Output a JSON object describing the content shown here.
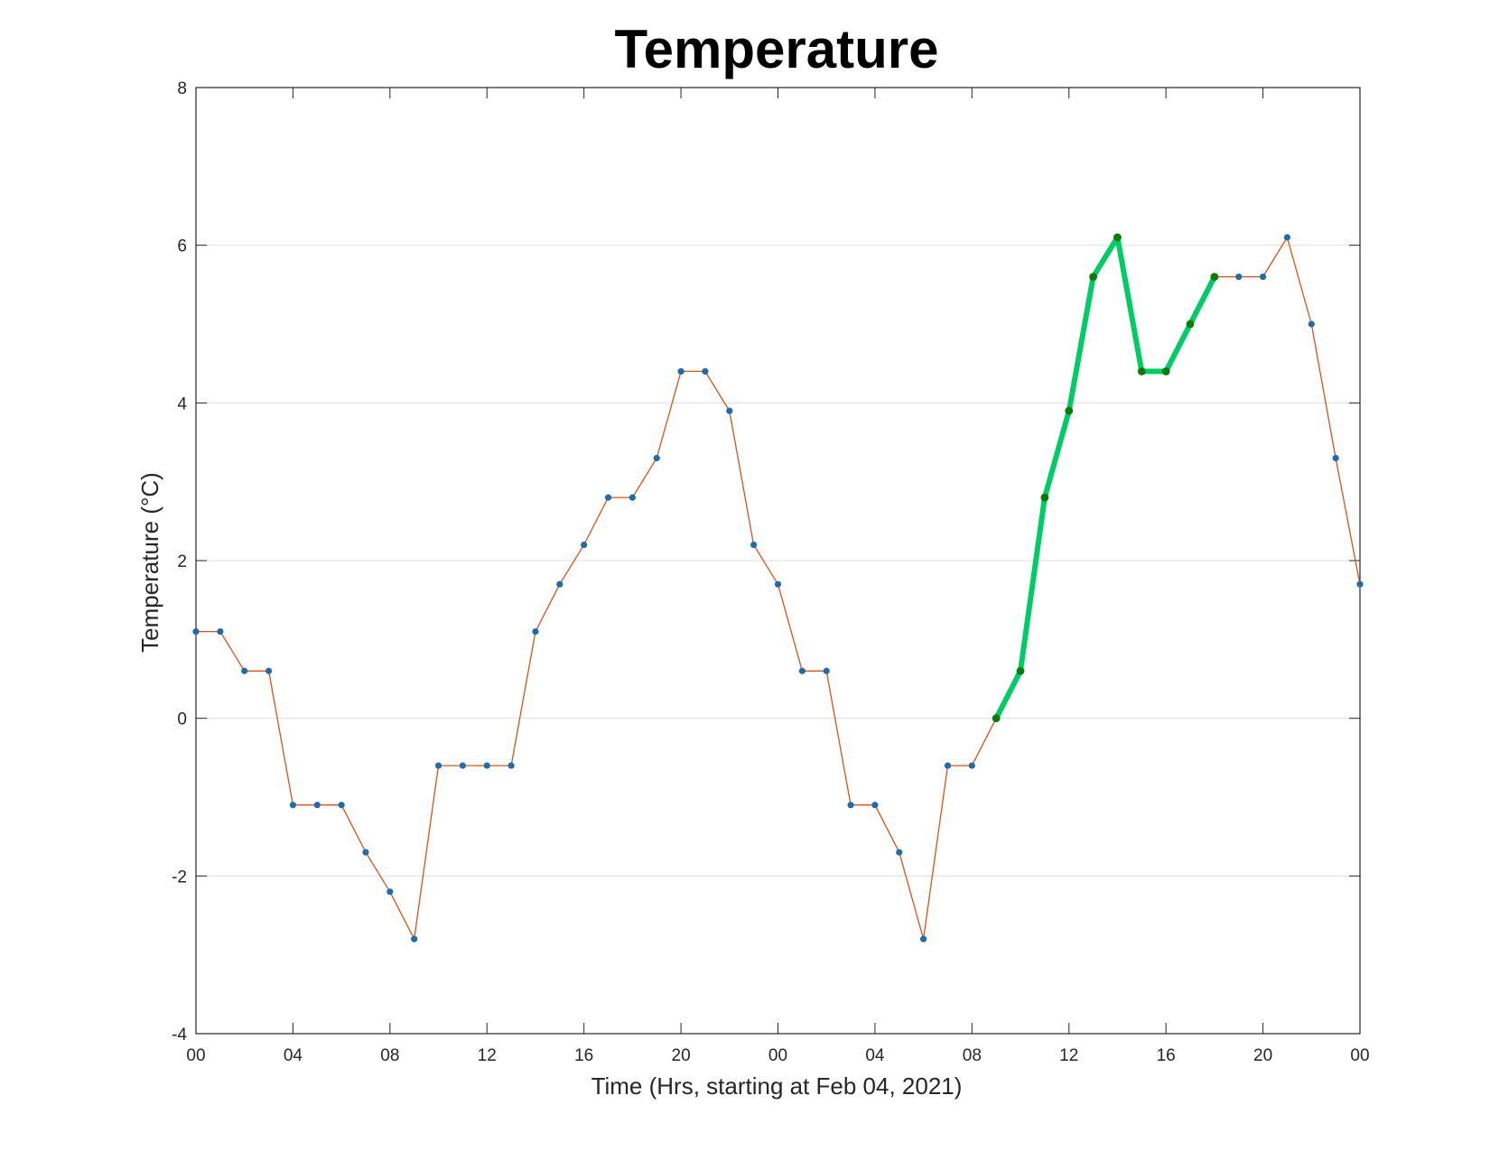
{
  "chart_data": {
    "type": "line",
    "title": "Temperature",
    "xlabel": "Time (Hrs, starting at Feb 04, 2021)",
    "ylabel": "Temperature (°C)",
    "x_start": "2021-02-04 00:00",
    "xlim": [
      "2021-02-04 00:00",
      "2021-02-06 00:00"
    ],
    "ylim": [
      -4,
      8
    ],
    "x_ticks": [
      "2021-02-04 00:00",
      "2021-02-04 04:00",
      "2021-02-04 08:00",
      "2021-02-04 12:00",
      "2021-02-04 16:00",
      "2021-02-04 20:00",
      "2021-02-05 00:00",
      "2021-02-05 04:00",
      "2021-02-05 08:00",
      "2021-02-05 12:00",
      "2021-02-05 16:00",
      "2021-02-05 20:00",
      "2021-02-06 00:00"
    ],
    "x_tick_labels": [
      "00",
      "04",
      "08",
      "12",
      "16",
      "20",
      "00",
      "04",
      "08",
      "12",
      "16",
      "20",
      "00"
    ],
    "y_ticks": [
      -4,
      -2,
      0,
      2,
      4,
      6,
      8
    ],
    "y_tick_labels": [
      "-4",
      "-2",
      "0",
      "2",
      "4",
      "6",
      "8"
    ],
    "grid": "horizontal",
    "series": [
      {
        "color": "#d95319",
        "marker_color": "#1f6ca8",
        "x": [
          "2021-02-04 00:00",
          "2021-02-04 01:00",
          "2021-02-04 02:00",
          "2021-02-04 03:00",
          "2021-02-04 04:00",
          "2021-02-04 05:00",
          "2021-02-04 06:00",
          "2021-02-04 07:00",
          "2021-02-04 08:00",
          "2021-02-04 09:00",
          "2021-02-04 10:00",
          "2021-02-04 11:00",
          "2021-02-04 12:00",
          "2021-02-04 13:00",
          "2021-02-04 14:00",
          "2021-02-04 15:00",
          "2021-02-04 16:00",
          "2021-02-04 17:00",
          "2021-02-04 18:00",
          "2021-02-04 19:00",
          "2021-02-04 20:00",
          "2021-02-04 21:00",
          "2021-02-04 22:00",
          "2021-02-04 23:00",
          "2021-02-05 00:00",
          "2021-02-05 01:00",
          "2021-02-05 02:00",
          "2021-02-05 03:00",
          "2021-02-05 04:00",
          "2021-02-05 05:00",
          "2021-02-05 06:00",
          "2021-02-05 07:00",
          "2021-02-05 08:00",
          "2021-02-05 09:00",
          "2021-02-05 10:00",
          "2021-02-05 11:00",
          "2021-02-05 12:00",
          "2021-02-05 13:00",
          "2021-02-05 14:00",
          "2021-02-05 15:00",
          "2021-02-05 16:00",
          "2021-02-05 17:00",
          "2021-02-05 18:00",
          "2021-02-05 19:00",
          "2021-02-05 20:00",
          "2021-02-05 21:00",
          "2021-02-05 22:00",
          "2021-02-05 23:00",
          "2021-02-06 00:00"
        ],
        "values": [
          1.1,
          1.1,
          0.6,
          0.6,
          -1.1,
          -1.1,
          -1.1,
          -1.7,
          -2.2,
          -2.8,
          -0.6,
          -0.6,
          -0.6,
          -0.6,
          1.1,
          1.7,
          2.2,
          2.8,
          2.8,
          3.3,
          4.4,
          4.4,
          3.9,
          2.2,
          1.7,
          0.6,
          0.6,
          -1.1,
          -1.1,
          -1.7,
          -2.8,
          -0.6,
          -0.6,
          0.0,
          0.6,
          2.8,
          3.9,
          5.6,
          6.1,
          4.4,
          4.4,
          5.0,
          5.6,
          5.6,
          5.6,
          6.1,
          5.0,
          3.3,
          1.7
        ]
      },
      {
        "color": "#00cc66",
        "marker_color": "#0a7a0a",
        "x": [
          "2021-02-05 09:00",
          "2021-02-05 10:00",
          "2021-02-05 11:00",
          "2021-02-05 12:00",
          "2021-02-05 13:00",
          "2021-02-05 14:00",
          "2021-02-05 15:00",
          "2021-02-05 16:00",
          "2021-02-05 17:00",
          "2021-02-05 18:00"
        ],
        "values": [
          0.0,
          0.6,
          2.8,
          3.9,
          5.6,
          6.1,
          4.4,
          4.4,
          5.0,
          5.6
        ]
      }
    ]
  }
}
